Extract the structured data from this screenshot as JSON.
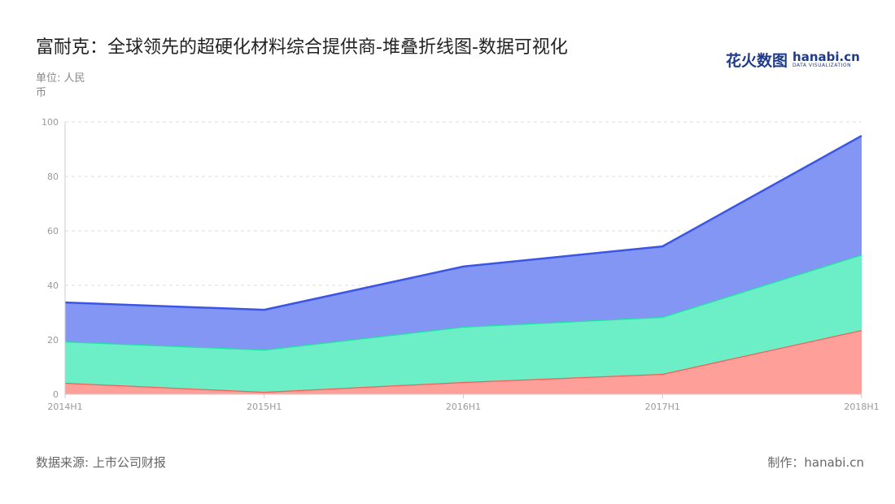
{
  "title": "富耐克：全球领先的超硬化材料综合提供商-堆叠折线图-数据可视化",
  "unit": "单位: 人民币",
  "logo": {
    "cn": "花火数图",
    "en": "hanabi.cn",
    "sub": "DATA VISUALIZATION"
  },
  "source": "数据来源: 上市公司财报",
  "credit": "制作：hanabi.cn",
  "chart_data": {
    "type": "area",
    "stacked": true,
    "categories": [
      "2014H1",
      "2015H1",
      "2016H1",
      "2017H1",
      "2018H1"
    ],
    "ylim": [
      0,
      100
    ],
    "yticks": [
      0,
      20,
      40,
      60,
      80,
      100
    ],
    "grid": true,
    "series": [
      {
        "values": [
          4.2,
          0.9,
          4.5,
          7.5,
          23.6
        ],
        "line_color": "#f0605a",
        "fill_color": "#ff9f9a"
      },
      {
        "values": [
          15.2,
          15.5,
          20.3,
          20.9,
          27.7
        ],
        "line_color": "#1ee39e",
        "fill_color": "#6cefc7"
      },
      {
        "values": [
          14.3,
          14.6,
          22.1,
          25.9,
          43.6
        ],
        "line_color": "#3b55e6",
        "fill_color": "#8496f3"
      }
    ]
  }
}
